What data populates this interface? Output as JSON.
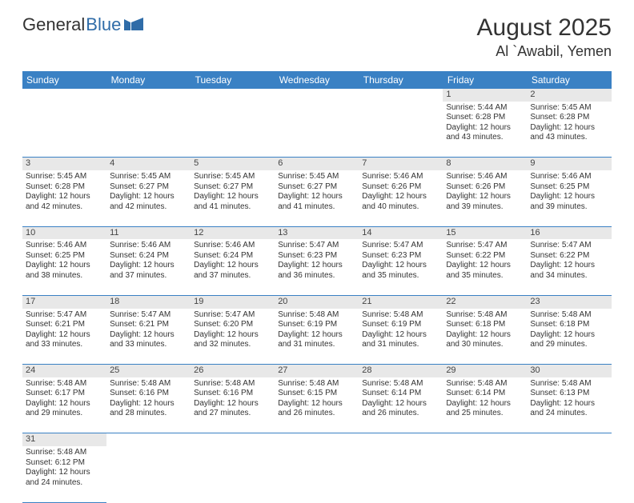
{
  "logo": {
    "text1": "General",
    "text2": "Blue"
  },
  "title": "August 2025",
  "location": "Al `Awabil, Yemen",
  "colors": {
    "header_bg": "#3a81c4",
    "header_text": "#ffffff",
    "daynum_bg": "#e8e8e8",
    "border": "#3a81c4",
    "logo_blue": "#2f6ca8",
    "text": "#333333"
  },
  "weekdays": [
    "Sunday",
    "Monday",
    "Tuesday",
    "Wednesday",
    "Thursday",
    "Friday",
    "Saturday"
  ],
  "first_weekday_index": 5,
  "days": [
    {
      "n": 1,
      "sr": "5:44 AM",
      "ss": "6:28 PM",
      "dl": "12 hours and 43 minutes."
    },
    {
      "n": 2,
      "sr": "5:45 AM",
      "ss": "6:28 PM",
      "dl": "12 hours and 43 minutes."
    },
    {
      "n": 3,
      "sr": "5:45 AM",
      "ss": "6:28 PM",
      "dl": "12 hours and 42 minutes."
    },
    {
      "n": 4,
      "sr": "5:45 AM",
      "ss": "6:27 PM",
      "dl": "12 hours and 42 minutes."
    },
    {
      "n": 5,
      "sr": "5:45 AM",
      "ss": "6:27 PM",
      "dl": "12 hours and 41 minutes."
    },
    {
      "n": 6,
      "sr": "5:45 AM",
      "ss": "6:27 PM",
      "dl": "12 hours and 41 minutes."
    },
    {
      "n": 7,
      "sr": "5:46 AM",
      "ss": "6:26 PM",
      "dl": "12 hours and 40 minutes."
    },
    {
      "n": 8,
      "sr": "5:46 AM",
      "ss": "6:26 PM",
      "dl": "12 hours and 39 minutes."
    },
    {
      "n": 9,
      "sr": "5:46 AM",
      "ss": "6:25 PM",
      "dl": "12 hours and 39 minutes."
    },
    {
      "n": 10,
      "sr": "5:46 AM",
      "ss": "6:25 PM",
      "dl": "12 hours and 38 minutes."
    },
    {
      "n": 11,
      "sr": "5:46 AM",
      "ss": "6:24 PM",
      "dl": "12 hours and 37 minutes."
    },
    {
      "n": 12,
      "sr": "5:46 AM",
      "ss": "6:24 PM",
      "dl": "12 hours and 37 minutes."
    },
    {
      "n": 13,
      "sr": "5:47 AM",
      "ss": "6:23 PM",
      "dl": "12 hours and 36 minutes."
    },
    {
      "n": 14,
      "sr": "5:47 AM",
      "ss": "6:23 PM",
      "dl": "12 hours and 35 minutes."
    },
    {
      "n": 15,
      "sr": "5:47 AM",
      "ss": "6:22 PM",
      "dl": "12 hours and 35 minutes."
    },
    {
      "n": 16,
      "sr": "5:47 AM",
      "ss": "6:22 PM",
      "dl": "12 hours and 34 minutes."
    },
    {
      "n": 17,
      "sr": "5:47 AM",
      "ss": "6:21 PM",
      "dl": "12 hours and 33 minutes."
    },
    {
      "n": 18,
      "sr": "5:47 AM",
      "ss": "6:21 PM",
      "dl": "12 hours and 33 minutes."
    },
    {
      "n": 19,
      "sr": "5:47 AM",
      "ss": "6:20 PM",
      "dl": "12 hours and 32 minutes."
    },
    {
      "n": 20,
      "sr": "5:48 AM",
      "ss": "6:19 PM",
      "dl": "12 hours and 31 minutes."
    },
    {
      "n": 21,
      "sr": "5:48 AM",
      "ss": "6:19 PM",
      "dl": "12 hours and 31 minutes."
    },
    {
      "n": 22,
      "sr": "5:48 AM",
      "ss": "6:18 PM",
      "dl": "12 hours and 30 minutes."
    },
    {
      "n": 23,
      "sr": "5:48 AM",
      "ss": "6:18 PM",
      "dl": "12 hours and 29 minutes."
    },
    {
      "n": 24,
      "sr": "5:48 AM",
      "ss": "6:17 PM",
      "dl": "12 hours and 29 minutes."
    },
    {
      "n": 25,
      "sr": "5:48 AM",
      "ss": "6:16 PM",
      "dl": "12 hours and 28 minutes."
    },
    {
      "n": 26,
      "sr": "5:48 AM",
      "ss": "6:16 PM",
      "dl": "12 hours and 27 minutes."
    },
    {
      "n": 27,
      "sr": "5:48 AM",
      "ss": "6:15 PM",
      "dl": "12 hours and 26 minutes."
    },
    {
      "n": 28,
      "sr": "5:48 AM",
      "ss": "6:14 PM",
      "dl": "12 hours and 26 minutes."
    },
    {
      "n": 29,
      "sr": "5:48 AM",
      "ss": "6:14 PM",
      "dl": "12 hours and 25 minutes."
    },
    {
      "n": 30,
      "sr": "5:48 AM",
      "ss": "6:13 PM",
      "dl": "12 hours and 24 minutes."
    },
    {
      "n": 31,
      "sr": "5:48 AM",
      "ss": "6:12 PM",
      "dl": "12 hours and 24 minutes."
    }
  ],
  "labels": {
    "sunrise": "Sunrise:",
    "sunset": "Sunset:",
    "daylight": "Daylight:"
  }
}
